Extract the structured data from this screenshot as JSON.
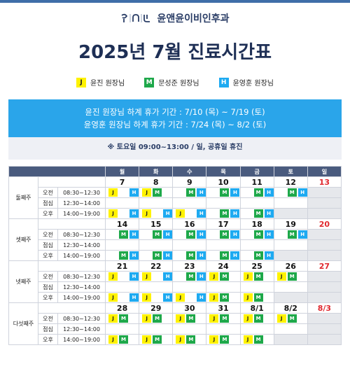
{
  "brand": {
    "name": "윤앤윤이비인후과"
  },
  "title": "2025년 7월 진료시간표",
  "legend": [
    {
      "code": "J",
      "label": "윤진 원장님",
      "color": "#fff200"
    },
    {
      "code": "M",
      "label": "문성준 원장님",
      "color": "#1ea84a"
    },
    {
      "code": "H",
      "label": "윤영훈 원장님",
      "color": "#1eaaf1"
    }
  ],
  "banner": {
    "line1": "윤진 원장님 하계 휴가 기간 : 7/10 (목) ~ 7/19 (토)",
    "line2": "윤영훈 원장님 하계 휴가 기간 : 7/24 (목) ~ 8/2 (토)",
    "color": "#2aa5ea"
  },
  "note": "※ 토요일 09:00~13:00 / 일, 공휴일 휴진",
  "days": [
    "월",
    "화",
    "수",
    "목",
    "금",
    "토",
    "일"
  ],
  "sessions": [
    {
      "name": "오전",
      "hours": "08:30~12:30"
    },
    {
      "name": "점심",
      "hours": "12:30~14:00"
    },
    {
      "name": "오후",
      "hours": "14:00~19:00"
    }
  ],
  "weeks": [
    {
      "label": "둘째주",
      "dates": [
        "7",
        "8",
        "9",
        "10",
        "11",
        "12",
        "13"
      ],
      "red": [
        false,
        false,
        false,
        false,
        false,
        false,
        true
      ],
      "am": [
        [
          "J",
          "H"
        ],
        [
          "J",
          "M"
        ],
        [
          "M",
          "H"
        ],
        [
          "M",
          "H"
        ],
        [
          "M",
          "H"
        ],
        [
          "M",
          "H"
        ],
        []
      ],
      "pm": [
        [
          "J",
          "H"
        ],
        [
          "J",
          "H"
        ],
        [
          "J",
          "H"
        ],
        [
          "M",
          "H"
        ],
        [
          "M",
          "H"
        ],
        [],
        []
      ]
    },
    {
      "label": "셋째주",
      "dates": [
        "14",
        "15",
        "16",
        "17",
        "18",
        "19",
        "20"
      ],
      "red": [
        false,
        false,
        false,
        false,
        false,
        false,
        true
      ],
      "am": [
        [
          "M",
          "H"
        ],
        [
          "M",
          "H"
        ],
        [
          "M",
          "H"
        ],
        [
          "M",
          "H"
        ],
        [
          "M",
          "H"
        ],
        [
          "M",
          "H"
        ],
        []
      ],
      "pm": [
        [
          "M",
          "H"
        ],
        [
          "M",
          "H"
        ],
        [
          "M",
          "H"
        ],
        [
          "M",
          "H"
        ],
        [
          "M",
          "H"
        ],
        [],
        []
      ]
    },
    {
      "label": "넷째주",
      "dates": [
        "21",
        "22",
        "23",
        "24",
        "25",
        "26",
        "27"
      ],
      "red": [
        false,
        false,
        false,
        false,
        false,
        false,
        true
      ],
      "am": [
        [
          "J",
          "H"
        ],
        [
          "J",
          "H"
        ],
        [
          "M",
          "H"
        ],
        [
          "J",
          "M"
        ],
        [
          "J",
          "M"
        ],
        [
          "J",
          "M"
        ],
        []
      ],
      "pm": [
        [
          "J",
          "H"
        ],
        [
          "J",
          "H"
        ],
        [
          "J",
          "H"
        ],
        [
          "J",
          "M"
        ],
        [
          "J",
          "M"
        ],
        [],
        []
      ]
    },
    {
      "label": "다섯째주",
      "dates": [
        "28",
        "29",
        "30",
        "31",
        "8/1",
        "8/2",
        "8/3"
      ],
      "red": [
        false,
        false,
        false,
        false,
        false,
        false,
        true
      ],
      "am": [
        [
          "J",
          "M"
        ],
        [
          "J",
          "M"
        ],
        [
          "J",
          "M"
        ],
        [
          "J",
          "M"
        ],
        [
          "J",
          "M"
        ],
        [
          "J",
          "M"
        ],
        []
      ],
      "pm": [
        [
          "J",
          "M"
        ],
        [
          "J",
          "M"
        ],
        [
          "J",
          "M"
        ],
        [
          "J",
          "M"
        ],
        [
          "J",
          "M"
        ],
        [],
        []
      ]
    }
  ]
}
